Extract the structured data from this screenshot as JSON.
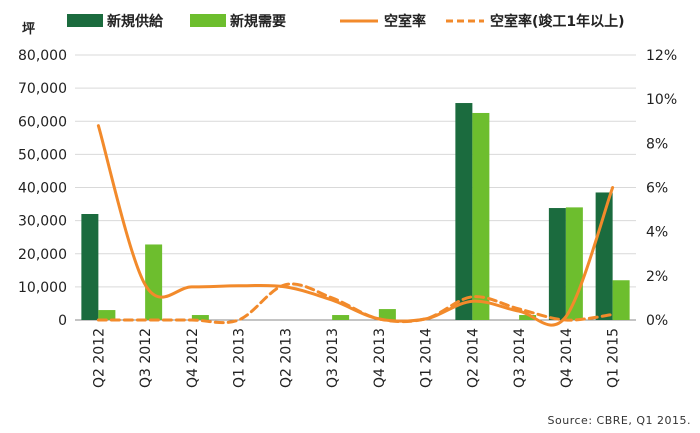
{
  "chart_data": {
    "type": "bar",
    "categories": [
      "Q2 2012",
      "Q3 2012",
      "Q4 2012",
      "Q1 2013",
      "Q2 2013",
      "Q3 2013",
      "Q4 2013",
      "Q1 2014",
      "Q2 2014",
      "Q3 2014",
      "Q4 2014",
      "Q1 2015"
    ],
    "y_unit": "坪",
    "ylim": [
      0,
      80000
    ],
    "yticks": [
      "0",
      "10,000",
      "20,000",
      "30,000",
      "40,000",
      "50,000",
      "60,000",
      "70,000",
      "80,000"
    ],
    "y2lim": [
      0,
      12
    ],
    "y2ticks": [
      "0%",
      "2%",
      "4%",
      "6%",
      "8%",
      "10%",
      "12%"
    ],
    "grid": true,
    "legend_position": "top",
    "series": [
      {
        "name": "新規供給",
        "type": "bar",
        "axis": "left",
        "color": "#1b6b3e",
        "values": [
          32000,
          0,
          0,
          0,
          0,
          0,
          0,
          0,
          65500,
          0,
          33800,
          38500
        ]
      },
      {
        "name": "新規需要",
        "type": "bar",
        "axis": "left",
        "color": "#6dbe2e",
        "values": [
          3000,
          22800,
          1500,
          0,
          0,
          1500,
          3300,
          0,
          62500,
          1500,
          34000,
          12000
        ]
      },
      {
        "name": "空室率",
        "type": "line",
        "axis": "right",
        "color": "#f28a2b",
        "dash": false,
        "values": [
          8.8,
          1.6,
          1.5,
          1.55,
          1.5,
          0.9,
          0.05,
          0.05,
          0.85,
          0.4,
          0.15,
          6.0
        ]
      },
      {
        "name": "空室率(竣工1年以上)",
        "type": "line",
        "axis": "right",
        "color": "#f28a2b",
        "dash": true,
        "values": [
          0.0,
          0.0,
          0.0,
          0.0,
          1.6,
          1.0,
          0.05,
          0.05,
          1.05,
          0.5,
          0.0,
          0.25
        ]
      }
    ],
    "source": "Source: CBRE, Q1 2015."
  }
}
